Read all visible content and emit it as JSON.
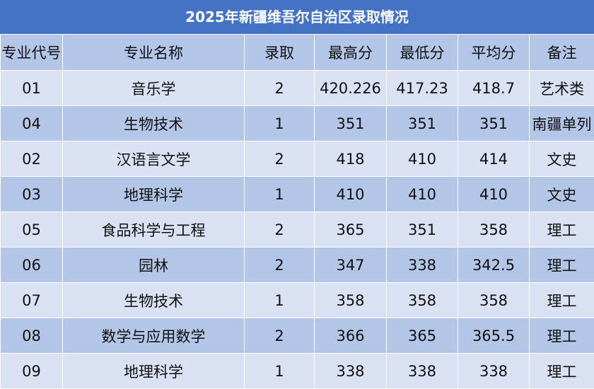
{
  "header": {
    "title": "2025年新疆维吾尔自治区录取情况"
  },
  "table": {
    "columns": [
      "专业代号",
      "专业名称",
      "录取",
      "最高分",
      "最低分",
      "平均分",
      "备注"
    ],
    "rows": [
      [
        "01",
        "音乐学",
        "2",
        "420.226",
        "417.23",
        "418.7",
        "艺术类"
      ],
      [
        "04",
        "生物技术",
        "1",
        "351",
        "351",
        "351",
        "南疆单列"
      ],
      [
        "02",
        "汉语言文学",
        "2",
        "418",
        "410",
        "414",
        "文史"
      ],
      [
        "03",
        "地理科学",
        "1",
        "410",
        "410",
        "410",
        "文史"
      ],
      [
        "05",
        "食品科学与工程",
        "2",
        "365",
        "351",
        "358",
        "理工"
      ],
      [
        "06",
        "园林",
        "2",
        "347",
        "338",
        "342.5",
        "理工"
      ],
      [
        "07",
        "生物技术",
        "1",
        "358",
        "358",
        "358",
        "理工"
      ],
      [
        "08",
        "数学与应用数学",
        "2",
        "366",
        "365",
        "365.5",
        "理工"
      ],
      [
        "09",
        "地理科学",
        "1",
        "338",
        "338",
        "338",
        "理工"
      ]
    ]
  }
}
